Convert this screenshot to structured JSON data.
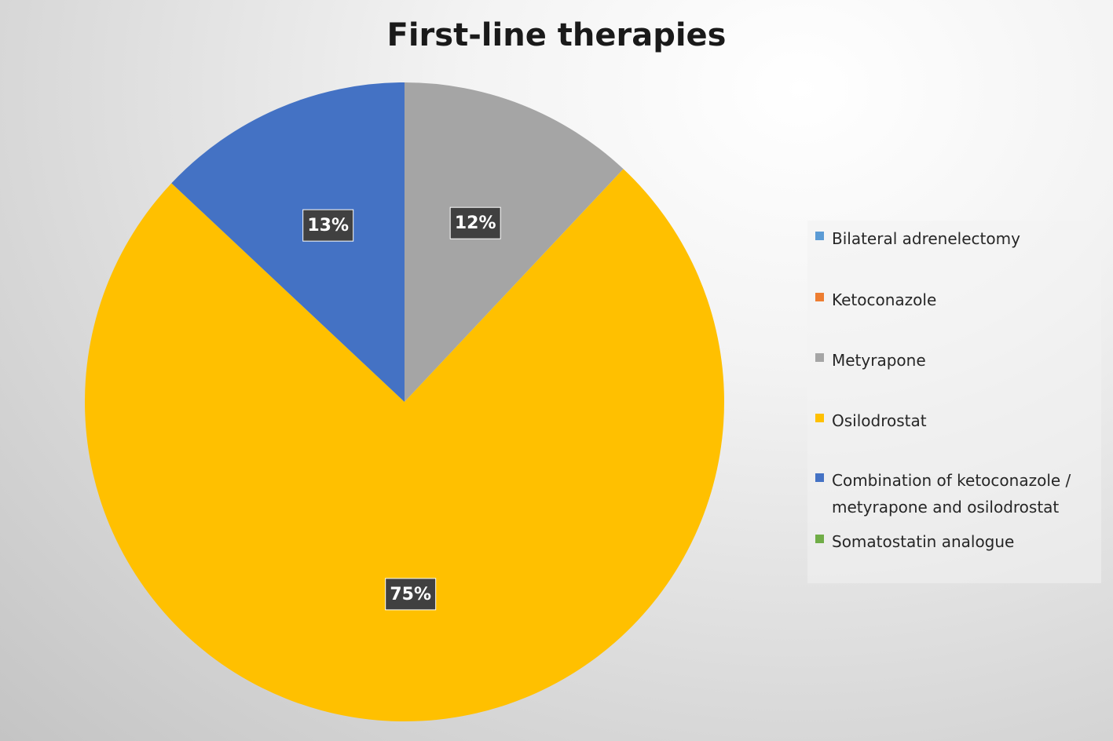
{
  "chart_data": {
    "type": "pie",
    "title": "First-line therapies",
    "legend_position": "right",
    "slices": [
      {
        "label": "Bilateral adrenelectomy",
        "value": 0,
        "data_label": "",
        "color": "#5B9BD5"
      },
      {
        "label": "Ketoconazole",
        "value": 0,
        "data_label": "",
        "color": "#ED7D31"
      },
      {
        "label": "Metyrapone",
        "value": 12,
        "data_label": "12%",
        "color": "#A5A5A5"
      },
      {
        "label": "Osilodrostat",
        "value": 75,
        "data_label": "75%",
        "color": "#FFC000"
      },
      {
        "label": "Combination of ketoconazole / metyrapone and osilodrostat",
        "value": 13,
        "data_label": "13%",
        "color": "#4472C4"
      },
      {
        "label": "Somatostatin analogue",
        "value": 0,
        "data_label": "",
        "color": "#70AD47"
      }
    ]
  },
  "legend": {
    "items": [
      {
        "lines": [
          "Bilateral adrenelectomy"
        ],
        "color": "#5B9BD5"
      },
      {
        "lines": [
          "Ketoconazole"
        ],
        "color": "#ED7D31"
      },
      {
        "lines": [
          "Metyrapone"
        ],
        "color": "#A5A5A5"
      },
      {
        "lines": [
          "Osilodrostat"
        ],
        "color": "#FFC000"
      },
      {
        "lines": [
          "Combination of ketoconazole /",
          "metyrapone and osilodrostat"
        ],
        "color": "#4472C4"
      },
      {
        "lines": [
          "Somatostatin analogue"
        ],
        "color": "#70AD47"
      }
    ]
  }
}
